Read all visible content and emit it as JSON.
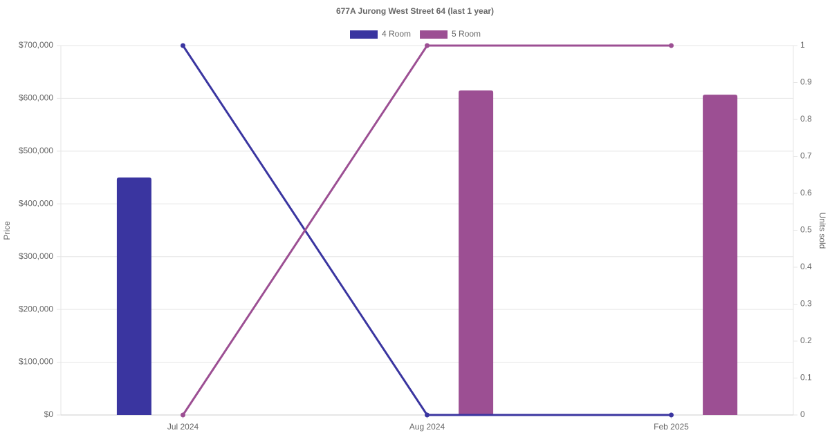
{
  "chart_data": {
    "type": "bar-line",
    "title": "677A Jurong West Street 64 (last 1 year)",
    "y_label": "Price",
    "y2_label": "Units sold",
    "categories": [
      "Jul 2024",
      "Aug 2024",
      "Feb 2025"
    ],
    "series": [
      {
        "name": "4 Room",
        "color": "#3a35a0",
        "values": [
          450000,
          null,
          null
        ],
        "units_sold": [
          1,
          0,
          0
        ]
      },
      {
        "name": "5 Room",
        "color": "#9c4f93",
        "values": [
          null,
          615000,
          607000
        ],
        "units_sold": [
          0,
          1,
          1
        ]
      }
    ],
    "ylim": [
      0,
      700000
    ],
    "yticks": [
      {
        "value": 0,
        "label": "$0"
      },
      {
        "value": 100000,
        "label": "$100,000"
      },
      {
        "value": 200000,
        "label": "$200,000"
      },
      {
        "value": 300000,
        "label": "$300,000"
      },
      {
        "value": 400000,
        "label": "$400,000"
      },
      {
        "value": 500000,
        "label": "$500,000"
      },
      {
        "value": 600000,
        "label": "$600,000"
      },
      {
        "value": 700000,
        "label": "$700,000"
      }
    ],
    "y2lim": [
      0,
      1
    ],
    "y2ticks": [
      0,
      0.1,
      0.2,
      0.3,
      0.4,
      0.5,
      0.6,
      0.7,
      0.8,
      0.9,
      1
    ],
    "grid": true,
    "legend": "top"
  }
}
